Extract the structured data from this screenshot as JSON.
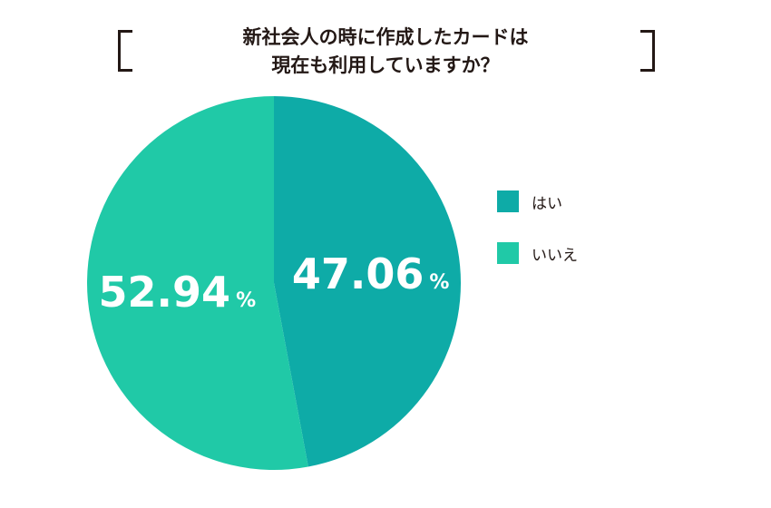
{
  "chart_data": {
    "type": "pie",
    "title_lines": [
      "新社会人の時に作成したカードは",
      "現在も利用していますか？"
    ],
    "slices": [
      {
        "label": "はい",
        "value": 47.06,
        "display": "47.06",
        "unit": "%",
        "color": "#0eaba7"
      },
      {
        "label": "いいえ",
        "value": 52.94,
        "display": "52.94",
        "unit": "%",
        "color": "#20c9a7"
      }
    ],
    "start_angle_deg": 0,
    "direction": "clockwise",
    "legend_position": "right"
  }
}
